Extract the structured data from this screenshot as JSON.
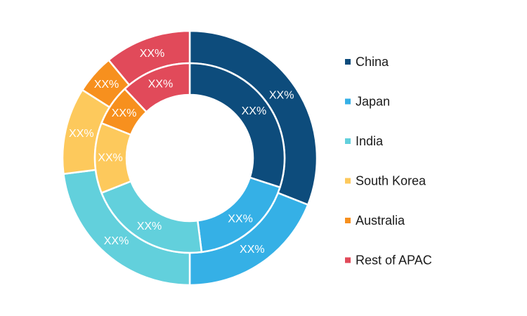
{
  "chart_data": {
    "type": "pie",
    "variant": "nested-donut",
    "categories": [
      "China",
      "Japan",
      "India",
      "South Korea",
      "Australia",
      "Rest of APAC"
    ],
    "colors": [
      "#0d4c7c",
      "#35b0e6",
      "#62d0dc",
      "#fdc95c",
      "#f7901e",
      "#e14a5a"
    ],
    "series": [
      {
        "ring": "outer",
        "values": [
          31,
          19,
          23,
          11,
          5,
          11
        ],
        "labels": [
          "XX%",
          "XX%",
          "XX%",
          "XX%",
          "XX%",
          "XX%"
        ]
      },
      {
        "ring": "inner",
        "values": [
          30,
          18,
          21,
          12,
          7,
          12
        ],
        "labels": [
          "XX%",
          "XX%",
          "XX%",
          "XX%",
          "XX%",
          "XX%"
        ]
      }
    ],
    "legend_position": "right"
  }
}
